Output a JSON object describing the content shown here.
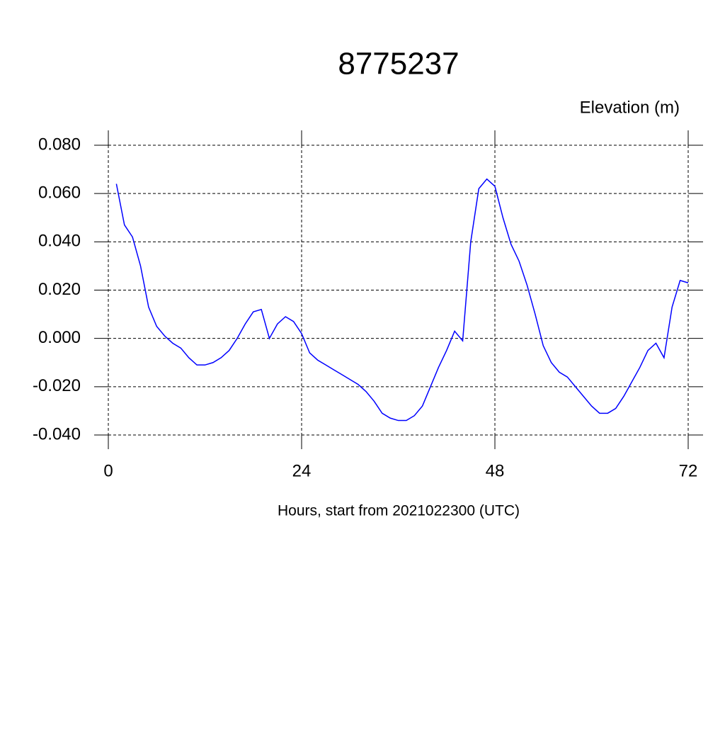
{
  "chart_data": {
    "type": "line",
    "title": "8775237",
    "subtitle": "Elevation (m)",
    "x_label": "Hours, start from 2021022300 (UTC)",
    "x": [
      1,
      2,
      3,
      4,
      5,
      6,
      7,
      8,
      9,
      10,
      11,
      12,
      13,
      14,
      15,
      16,
      17,
      18,
      19,
      20,
      21,
      22,
      23,
      24,
      25,
      26,
      27,
      28,
      29,
      30,
      31,
      32,
      33,
      34,
      35,
      36,
      37,
      38,
      39,
      40,
      41,
      42,
      43,
      44,
      45,
      46,
      47,
      48,
      49,
      50,
      51,
      52,
      53,
      54,
      55,
      56,
      57,
      58,
      59,
      60,
      61,
      62,
      63,
      64,
      65,
      66,
      67,
      68,
      69,
      70,
      71,
      72
    ],
    "series": [
      {
        "name": "Elevation",
        "color": "#0000ff",
        "values": [
          0.064,
          0.047,
          0.042,
          0.03,
          0.013,
          0.005,
          0.001,
          -0.002,
          -0.004,
          -0.008,
          -0.011,
          -0.011,
          -0.01,
          -0.008,
          -0.005,
          0.0,
          0.006,
          0.011,
          0.012,
          0.0,
          0.006,
          0.009,
          0.007,
          0.002,
          -0.006,
          -0.009,
          -0.011,
          -0.013,
          -0.015,
          -0.017,
          -0.019,
          -0.022,
          -0.026,
          -0.031,
          -0.033,
          -0.034,
          -0.034,
          -0.032,
          -0.028,
          -0.02,
          -0.012,
          -0.005,
          0.003,
          -0.001,
          0.04,
          0.062,
          0.066,
          0.063,
          0.05,
          0.039,
          0.032,
          0.022,
          0.01,
          -0.003,
          -0.01,
          -0.014,
          -0.016,
          -0.02,
          -0.024,
          -0.028,
          -0.031,
          -0.031,
          -0.029,
          -0.024,
          -0.018,
          -0.012,
          -0.005,
          -0.002,
          -0.008,
          0.013,
          0.024,
          0.023
        ]
      }
    ],
    "xlim": [
      0,
      72
    ],
    "xticks": [
      0,
      24,
      48,
      72
    ],
    "ylim": [
      -0.04,
      0.08
    ],
    "yticks": [
      {
        "value": -0.04,
        "label": "-0.040"
      },
      {
        "value": -0.02,
        "label": "-0.020"
      },
      {
        "value": 0,
        "label": "0.000"
      },
      {
        "value": 0.02,
        "label": "0.020"
      },
      {
        "value": 0.04,
        "label": "0.040"
      },
      {
        "value": 0.06,
        "label": "0.060"
      },
      {
        "value": 0.08,
        "label": "0.080"
      }
    ],
    "grid": true
  }
}
